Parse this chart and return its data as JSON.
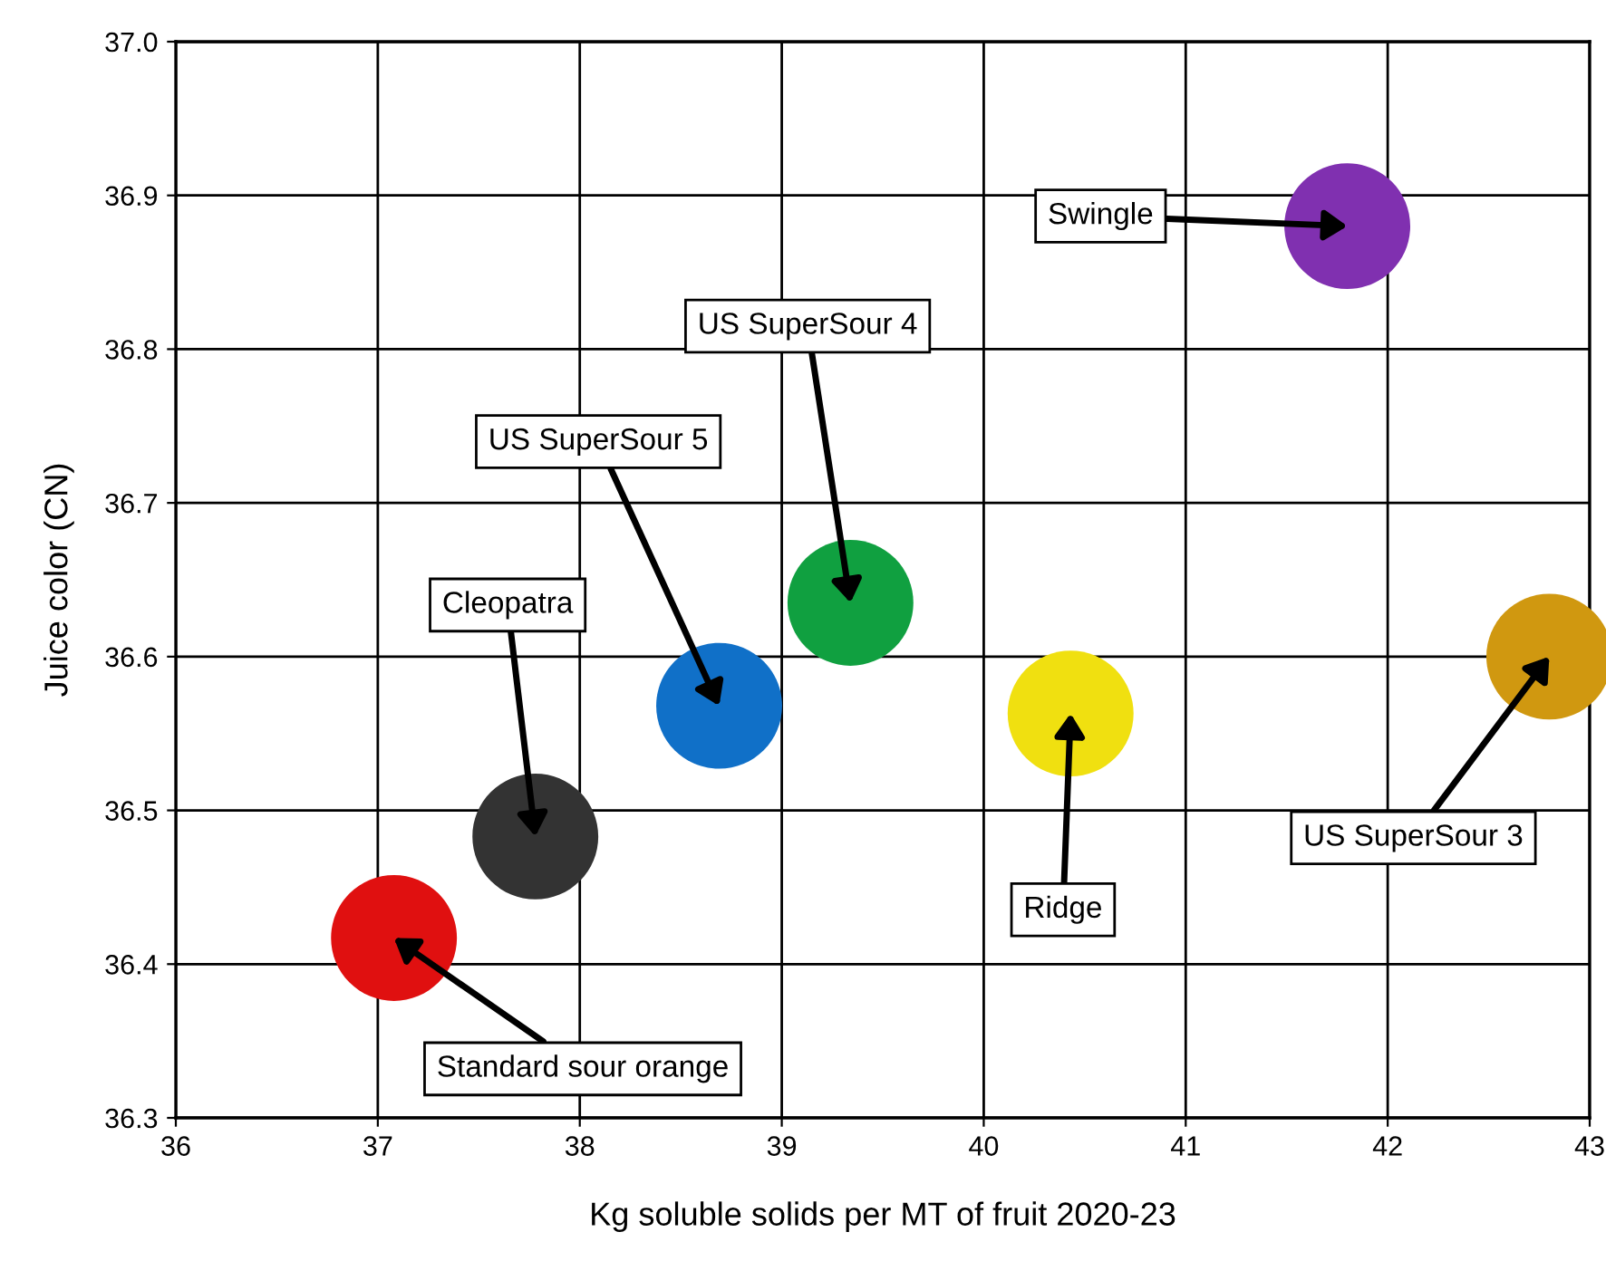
{
  "chart_data": {
    "type": "scatter",
    "xlabel": "Kg soluble solids per MT of fruit 2020-23",
    "ylabel": "Juice color (CN)",
    "x": [
      37.08,
      37.78,
      38.69,
      39.34,
      40.43,
      41.8,
      42.8
    ],
    "values": [
      36.417,
      36.483,
      36.568,
      36.635,
      36.563,
      36.88,
      36.6
    ],
    "colors": [
      "#e01010",
      "#333333",
      "#1070c8",
      "#10a040",
      "#f0e010",
      "#8030b0",
      "#d09810"
    ],
    "annotations": [
      {
        "text": "Standard sour orange",
        "x": 37.08,
        "y": 36.417
      },
      {
        "text": "Cleopatra",
        "x": 37.78,
        "y": 36.483
      },
      {
        "text": "US SuperSour 5",
        "x": 38.69,
        "y": 36.568
      },
      {
        "text": "US SuperSour 4",
        "x": 39.34,
        "y": 36.635
      },
      {
        "text": "Ridge",
        "x": 40.43,
        "y": 36.563
      },
      {
        "text": "Swingle",
        "x": 41.8,
        "y": 36.88
      },
      {
        "text": "US SuperSour 3",
        "x": 42.8,
        "y": 36.6
      }
    ],
    "xlim": [
      36,
      43
    ],
    "ylim": [
      36.3,
      37.0
    ],
    "xticks": [
      36,
      37,
      38,
      39,
      40,
      41,
      42,
      43
    ],
    "yticks": [
      36.3,
      36.4,
      36.5,
      36.6,
      36.7,
      36.8,
      36.9,
      {
        "value": 37,
        "label": "37.0"
      }
    ],
    "grid": true,
    "marker": "circle"
  }
}
